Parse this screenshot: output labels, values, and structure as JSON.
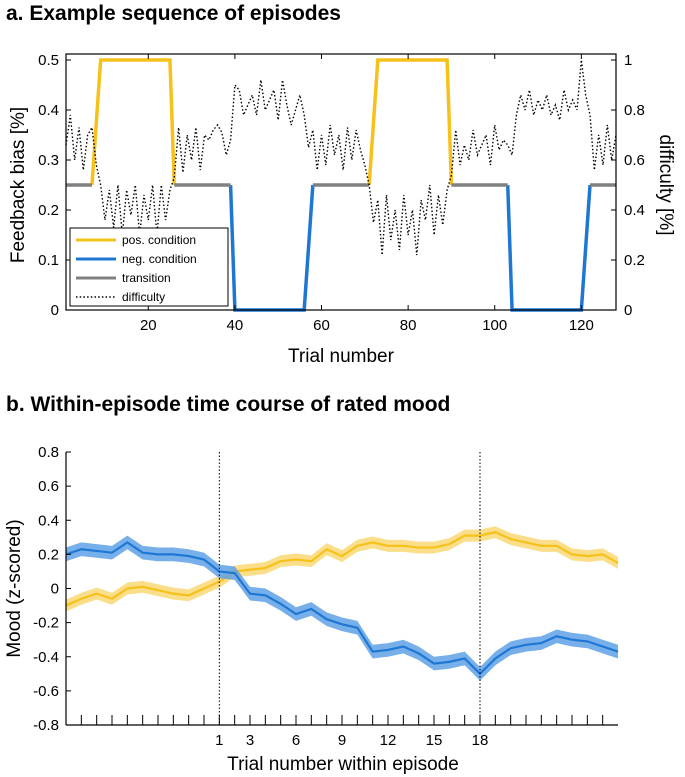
{
  "panels": {
    "a_title": "a. Example sequence of episodes",
    "b_title": "b. Within-episode time course of rated mood"
  },
  "colors": {
    "positive": "#F7C11B",
    "negative": "#1F77D4",
    "transition": "#808080",
    "difficulty": "#000000",
    "positive_band": "#F9D874",
    "negative_band": "#5FA1E6"
  },
  "chart_data": [
    {
      "type": "line",
      "title": "a. Example sequence of episodes",
      "xlabel": "Trial number",
      "ylabel": "Feedback bias [%]",
      "ylabel_right": "difficulty [%]",
      "xlim": [
        1,
        128
      ],
      "ylim": [
        0,
        0.5
      ],
      "ylim_right": [
        0,
        1
      ],
      "xticks": [
        20,
        40,
        60,
        80,
        100,
        120
      ],
      "yticks": [
        0,
        0.1,
        0.2,
        0.3,
        0.4,
        0.5
      ],
      "yticks_right": [
        0,
        0.2,
        0.4,
        0.6,
        0.8,
        1
      ],
      "legend_position": "bottom-left",
      "series": [
        {
          "name": "pos. condition",
          "style": "solid",
          "segments": [
            [
              [
                7,
                0.25
              ],
              [
                9,
                0.5
              ],
              [
                25,
                0.5
              ],
              [
                26,
                0.25
              ]
            ],
            [
              [
                71,
                0.25
              ],
              [
                73,
                0.5
              ],
              [
                89,
                0.5
              ],
              [
                90,
                0.25
              ]
            ]
          ]
        },
        {
          "name": "neg. condition",
          "style": "solid",
          "segments": [
            [
              [
                39,
                0.25
              ],
              [
                40,
                0
              ],
              [
                56,
                0
              ],
              [
                58,
                0.25
              ]
            ],
            [
              [
                103,
                0.25
              ],
              [
                104,
                0
              ],
              [
                120,
                0
              ],
              [
                122,
                0.25
              ]
            ]
          ]
        },
        {
          "name": "transition",
          "style": "solid",
          "segments": [
            [
              [
                1,
                0.25
              ],
              [
                7,
                0.25
              ]
            ],
            [
              [
                26,
                0.25
              ],
              [
                39,
                0.25
              ]
            ],
            [
              [
                58,
                0.25
              ],
              [
                71,
                0.25
              ]
            ],
            [
              [
                90,
                0.25
              ],
              [
                103,
                0.25
              ]
            ],
            [
              [
                122,
                0.25
              ],
              [
                128,
                0.25
              ]
            ]
          ]
        },
        {
          "name": "difficulty",
          "style": "dotted",
          "axis": "right",
          "x": [
            1,
            2,
            3,
            4,
            5,
            6,
            7,
            8,
            9,
            10,
            11,
            12,
            13,
            14,
            15,
            16,
            17,
            18,
            19,
            20,
            21,
            22,
            23,
            24,
            25,
            26,
            27,
            28,
            29,
            30,
            31,
            32,
            33,
            34,
            35,
            36,
            37,
            38,
            39,
            40,
            41,
            42,
            43,
            44,
            45,
            46,
            47,
            48,
            49,
            50,
            51,
            52,
            53,
            54,
            55,
            56,
            57,
            58,
            59,
            60,
            61,
            62,
            63,
            64,
            65,
            66,
            67,
            68,
            69,
            70,
            71,
            72,
            73,
            74,
            75,
            76,
            77,
            78,
            79,
            80,
            81,
            82,
            83,
            84,
            85,
            86,
            87,
            88,
            89,
            90,
            91,
            92,
            93,
            94,
            95,
            96,
            97,
            98,
            99,
            100,
            101,
            102,
            103,
            104,
            105,
            106,
            107,
            108,
            109,
            110,
            111,
            112,
            113,
            114,
            115,
            116,
            117,
            118,
            119,
            120,
            121,
            122,
            123,
            124,
            125,
            126,
            127,
            128
          ],
          "values": [
            0.66,
            0.78,
            0.6,
            0.73,
            0.56,
            0.7,
            0.73,
            0.58,
            0.5,
            0.36,
            0.48,
            0.33,
            0.5,
            0.3,
            0.48,
            0.38,
            0.5,
            0.3,
            0.46,
            0.36,
            0.5,
            0.3,
            0.5,
            0.36,
            0.48,
            0.53,
            0.73,
            0.55,
            0.7,
            0.6,
            0.73,
            0.56,
            0.7,
            0.68,
            0.72,
            0.74,
            0.71,
            0.62,
            0.68,
            0.9,
            0.88,
            0.78,
            0.82,
            0.86,
            0.78,
            0.92,
            0.8,
            0.84,
            0.88,
            0.76,
            0.92,
            0.82,
            0.74,
            0.8,
            0.86,
            0.78,
            0.65,
            0.72,
            0.56,
            0.7,
            0.58,
            0.74,
            0.62,
            0.7,
            0.56,
            0.73,
            0.6,
            0.72,
            0.64,
            0.58,
            0.5,
            0.35,
            0.44,
            0.22,
            0.46,
            0.28,
            0.4,
            0.24,
            0.46,
            0.3,
            0.4,
            0.22,
            0.44,
            0.36,
            0.5,
            0.3,
            0.46,
            0.34,
            0.48,
            0.54,
            0.72,
            0.58,
            0.66,
            0.6,
            0.72,
            0.62,
            0.66,
            0.7,
            0.58,
            0.74,
            0.64,
            0.68,
            0.66,
            0.62,
            0.78,
            0.86,
            0.8,
            0.88,
            0.78,
            0.84,
            0.8,
            0.86,
            0.78,
            0.82,
            0.76,
            0.88,
            0.8,
            0.84,
            0.8,
            1.0,
            0.86,
            0.78,
            0.56,
            0.7,
            0.58,
            0.74,
            0.6,
            0.7
          ]
        }
      ]
    },
    {
      "type": "line",
      "title": "b. Within-episode time course of rated mood",
      "xlabel": "Trial number within episode",
      "ylabel": "Mood (z-scored)",
      "xlim": [
        -9,
        27
      ],
      "ylim": [
        -0.8,
        0.8
      ],
      "xticks": [
        1,
        3,
        6,
        9,
        12,
        15,
        18
      ],
      "yticks": [
        -0.8,
        -0.6,
        -0.4,
        -0.2,
        0,
        0.2,
        0.4,
        0.6,
        0.8
      ],
      "minor_xticks_from": -8,
      "minor_xticks_to": 26,
      "vlines": [
        1,
        18
      ],
      "grid": false,
      "series": [
        {
          "name": "pos. condition",
          "x": [
            -9,
            -8,
            -7,
            -6,
            -5,
            -4,
            -3,
            -2,
            -1,
            0,
            1,
            2,
            3,
            4,
            5,
            6,
            7,
            8,
            9,
            10,
            11,
            12,
            13,
            14,
            15,
            16,
            17,
            18,
            19,
            20,
            21,
            22,
            23,
            24,
            25,
            26,
            27
          ],
          "values": [
            -0.1,
            -0.06,
            -0.03,
            -0.06,
            0.0,
            0.01,
            -0.01,
            -0.03,
            -0.04,
            0.0,
            0.04,
            0.1,
            0.11,
            0.12,
            0.16,
            0.17,
            0.16,
            0.23,
            0.19,
            0.25,
            0.27,
            0.25,
            0.25,
            0.24,
            0.24,
            0.26,
            0.31,
            0.31,
            0.33,
            0.29,
            0.27,
            0.25,
            0.25,
            0.2,
            0.19,
            0.2,
            0.15
          ],
          "error": 0.035
        },
        {
          "name": "neg. condition",
          "x": [
            -9,
            -8,
            -7,
            -6,
            -5,
            -4,
            -3,
            -2,
            -1,
            0,
            1,
            2,
            3,
            4,
            5,
            6,
            7,
            8,
            9,
            10,
            11,
            12,
            13,
            14,
            15,
            16,
            17,
            18,
            19,
            20,
            21,
            22,
            23,
            24,
            25,
            26,
            27
          ],
          "values": [
            0.2,
            0.23,
            0.22,
            0.21,
            0.27,
            0.21,
            0.2,
            0.2,
            0.19,
            0.17,
            0.1,
            0.09,
            -0.03,
            -0.04,
            -0.09,
            -0.15,
            -0.12,
            -0.18,
            -0.21,
            -0.23,
            -0.37,
            -0.36,
            -0.34,
            -0.38,
            -0.44,
            -0.43,
            -0.41,
            -0.5,
            -0.41,
            -0.35,
            -0.33,
            -0.32,
            -0.28,
            -0.3,
            -0.31,
            -0.34,
            -0.37
          ],
          "error": 0.04
        }
      ]
    }
  ]
}
